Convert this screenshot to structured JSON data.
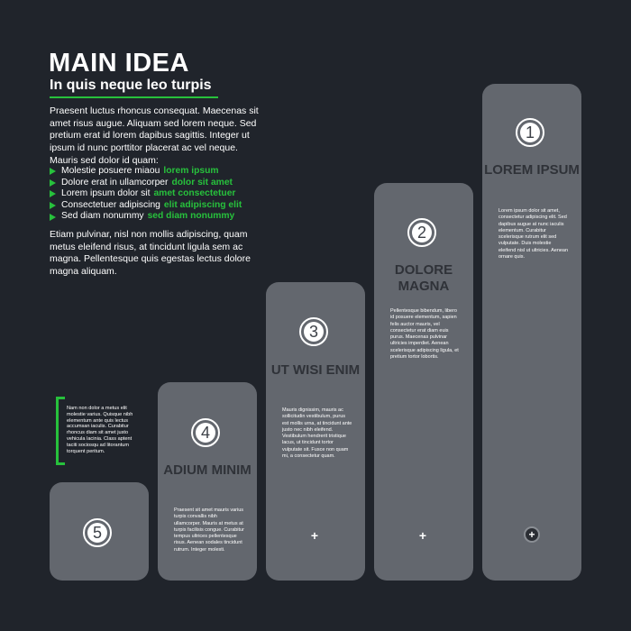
{
  "header": {
    "title": "MAIN IDEA",
    "subtitle": "In quis neque leo turpis",
    "accent_color": "#27c13c"
  },
  "intro": "Praesent luctus rhoncus consequat. Maecenas sit amet risus augue. Aliquam sed lorem neque. Sed pretium erat id lorem dapibus sagittis. Integer ut ipsum id nunc porttitor placerat ac vel neque. Mauris sed dolor id quam:",
  "bullets": [
    {
      "text": "Molestie posuere miaou",
      "highlight": "lorem ipsum"
    },
    {
      "text": "Dolore erat in ullamcorper",
      "highlight": "dolor sit amet"
    },
    {
      "text": "Lorem ipsum dolor sit",
      "highlight": "amet consectetuer"
    },
    {
      "text": "Consectetuer adipiscing",
      "highlight": "elit adipiscing elit"
    },
    {
      "text": "Sed diam nonummy",
      "highlight": "sed diam nonummy"
    }
  ],
  "outro": "Etiam pulvinar, nisl non mollis adipiscing, quam metus eleifend risus, at tincidunt ligula sem ac magna. Pellentesque quis egestas lectus dolore magna aliquam.",
  "side_note": "Nam non dolor a metus elit molestie varius. Quisque nibh elementum ante quis lectus accumsan iaculis. Curabitur rhoncus diam sit amet justo vehicula lacinia. Class aptent taciti sociosqu ad litorantum torquent peritum.",
  "steps": [
    {
      "number": "1",
      "title": "LOREM IPSUM",
      "text": "Lorem ipsum dolor sit amet, consectetur adipiscing elit. Sed dapibus augue at nunc iaculis elementum. Curabitur scelerisque rutrum elit sed vulputate. Duis molestie eleifend nisl ut ultricies. Aenean ornare quis.",
      "icon": "plus-circle-icon"
    },
    {
      "number": "2",
      "title": "DOLORE MAGNA",
      "text": "Pellentesque bibendum, libero id posuere elementum, sapien felis auctor mauris, vel consectetur erat diam euis purus. Maecenas pulvinar ultricies imperdiet. Aenean scelerisque adipiscing ligula, et pretium tortor lobortis.",
      "icon": "plus-icon"
    },
    {
      "number": "3",
      "title": "UT WISI ENIM",
      "text": "Mauris dignissim, mauris ac sollicitudin vestibulum, purus est mollis urna, at tincidunt ante justo nec nibh eleifend. Vestibulum hendrerit tristique lacus, ut tincidunt tortor vulputate sit. Fusce non quam mi, a consectetur quam.",
      "icon": "plus-icon"
    },
    {
      "number": "4",
      "title": "ADIUM MINIM",
      "text": "Praesent sit amet mauris varius turpis convallis nibh ullamcorper. Mauris at metus at turpis facilisis congue. Curabitur tempus ultrices pellentesque risus. Aenean sodales tincidunt rutrum. Integer molesti.",
      "icon": ""
    },
    {
      "number": "5",
      "title": "",
      "text": "",
      "icon": ""
    }
  ],
  "colors": {
    "background": "#20242b",
    "card": "#63676e",
    "card_title": "#2f3238"
  }
}
